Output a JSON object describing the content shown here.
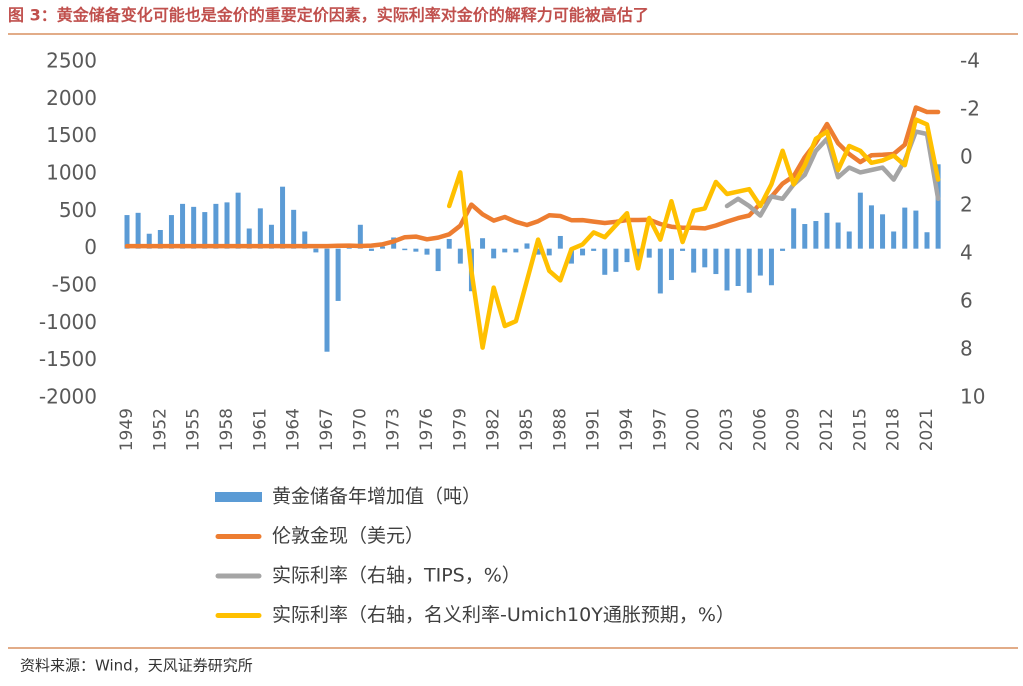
{
  "chart_data": {
    "type": "combo",
    "title": "图 3：黄金储备变化可能也是金价的重要定价因素，实际利率对金价的解释力可能被高估了",
    "source": "资料来源：Wind，天风证券研究所",
    "categories": [
      "1949",
      null,
      null,
      "1952",
      null,
      null,
      "1955",
      null,
      null,
      "1958",
      null,
      null,
      "1961",
      null,
      null,
      "1964",
      null,
      null,
      "1967",
      null,
      null,
      "1970",
      null,
      null,
      "1973",
      null,
      null,
      "1976",
      null,
      null,
      "1979",
      null,
      null,
      "1982",
      null,
      null,
      "1985",
      null,
      null,
      "1988",
      null,
      null,
      "1991",
      null,
      null,
      "1994",
      null,
      null,
      "1997",
      null,
      null,
      "2000",
      null,
      null,
      "2003",
      null,
      null,
      "2006",
      null,
      null,
      "2009",
      null,
      null,
      "2012",
      null,
      null,
      "2015",
      null,
      null,
      "2018",
      null,
      null,
      "2021",
      null
    ],
    "ylim": [
      -2000,
      2500
    ],
    "yticks": [
      -2000,
      -1500,
      -1000,
      -500,
      0,
      500,
      1000,
      1500,
      2000,
      2500
    ],
    "y2lim": [
      10,
      -4
    ],
    "y2ticks": [
      -4,
      -2,
      0,
      2,
      4,
      6,
      8,
      10
    ],
    "series": [
      {
        "name": "黄金储备年增加值（吨）",
        "type": "bar",
        "color": "#5b9bd5",
        "values": [
          450,
          480,
          200,
          250,
          450,
          600,
          560,
          490,
          600,
          620,
          750,
          270,
          540,
          320,
          830,
          520,
          230,
          -50,
          -1380,
          -700,
          60,
          320,
          -30,
          30,
          150,
          -20,
          -40,
          -80,
          -300,
          130,
          -200,
          -570,
          140,
          -130,
          -50,
          -50,
          70,
          -80,
          -90,
          170,
          -200,
          -90,
          -30,
          -350,
          -310,
          -180,
          -200,
          -120,
          -600,
          -420,
          -30,
          -320,
          -250,
          -340,
          -560,
          -500,
          -590,
          -360,
          -490,
          -30,
          540,
          330,
          370,
          480,
          350,
          230,
          750,
          580,
          460,
          230,
          550,
          510,
          220,
          1130
        ]
      },
      {
        "name": "伦敦金现（美元）",
        "type": "line",
        "color": "#ed7d31",
        "values": [
          35,
          35,
          35,
          35,
          35,
          35,
          35,
          35,
          35,
          35,
          35,
          35,
          35,
          35,
          35,
          35,
          35,
          35,
          35,
          40,
          41,
          36,
          41,
          58,
          97,
          154,
          161,
          125,
          148,
          193,
          307,
          590,
          460,
          376,
          424,
          360,
          317,
          368,
          447,
          437,
          381,
          383,
          362,
          344,
          360,
          384,
          384,
          388,
          331,
          294,
          279,
          279,
          271,
          310,
          363,
          409,
          444,
          604,
          695,
          872,
          972,
          1225,
          1420,
          1669,
          1411,
          1266,
          1160,
          1251,
          1257,
          1268,
          1393,
          1890,
          1830,
          1830
        ]
      },
      {
        "name": "实际利率（右轴，TIPS，%）",
        "type": "line",
        "axis": "y2",
        "color": "#a5a5a5",
        "values": [
          null,
          null,
          null,
          null,
          null,
          null,
          null,
          null,
          null,
          null,
          null,
          null,
          null,
          null,
          null,
          null,
          null,
          null,
          null,
          null,
          null,
          null,
          null,
          null,
          null,
          null,
          null,
          null,
          null,
          null,
          null,
          null,
          null,
          null,
          null,
          null,
          null,
          null,
          null,
          null,
          null,
          null,
          null,
          null,
          null,
          null,
          null,
          null,
          null,
          null,
          null,
          null,
          null,
          null,
          2.0,
          1.7,
          2.0,
          2.4,
          1.6,
          1.7,
          1.1,
          0.7,
          -0.3,
          -0.8,
          0.8,
          0.4,
          0.6,
          0.5,
          0.4,
          0.9,
          0.1,
          -1.1,
          -1.0,
          1.7
        ]
      },
      {
        "name": "实际利率（右轴，名义利率-Umich10Y通胀预期，%）",
        "type": "line",
        "axis": "y2",
        "color": "#ffc000",
        "values": [
          null,
          null,
          null,
          null,
          null,
          null,
          null,
          null,
          null,
          null,
          null,
          null,
          null,
          null,
          null,
          null,
          null,
          null,
          null,
          null,
          null,
          null,
          null,
          null,
          null,
          null,
          null,
          null,
          null,
          2.0,
          0.6,
          4.7,
          7.9,
          5.4,
          7.0,
          6.8,
          5.1,
          3.4,
          4.7,
          5.1,
          3.8,
          3.6,
          3.1,
          3.3,
          2.8,
          2.3,
          4.6,
          2.5,
          3.4,
          1.8,
          3.5,
          2.2,
          2.1,
          1.0,
          1.5,
          1.4,
          1.3,
          2.0,
          1.1,
          -0.3,
          1.1,
          0.3,
          -0.8,
          -1.1,
          0.5,
          -0.5,
          -0.3,
          0.2,
          0.1,
          -0.1,
          0.3,
          -1.6,
          -1.4,
          0.9
        ]
      }
    ]
  }
}
